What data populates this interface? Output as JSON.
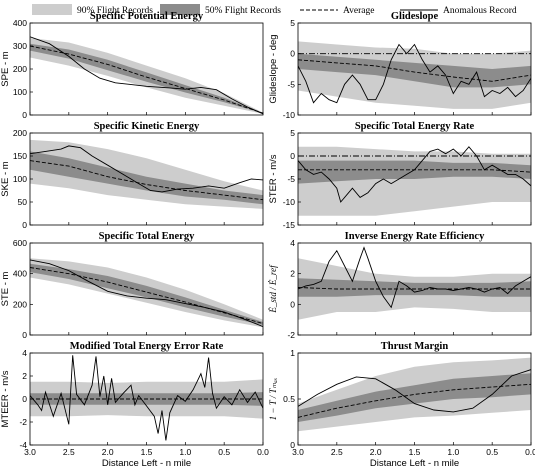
{
  "legend": [
    {
      "label": "90% Flight Records",
      "kind": "swatch",
      "color": "#cdcdcd"
    },
    {
      "label": "50% Flight Records",
      "kind": "swatch",
      "color": "#8c8c8c"
    },
    {
      "label": "Average",
      "kind": "dashed",
      "color": "#000000"
    },
    {
      "label": "Anomalous Record",
      "kind": "solid",
      "color": "#000000"
    }
  ],
  "colors": {
    "band90": "#cdcdcd",
    "band50": "#8c8c8c",
    "line": "#000000"
  },
  "chart_data": [
    {
      "type": "area",
      "title": "Specific Potential Energy",
      "ylabel": "SPE - m",
      "xlabel": "",
      "xlim": [
        3.0,
        0.0
      ],
      "ylim": [
        0,
        400
      ],
      "yticks": [
        0,
        100,
        200,
        300,
        400
      ],
      "xticks": [
        3.0,
        2.5,
        2.0,
        1.5,
        1.0,
        0.5,
        0.0
      ],
      "xticklabels": [],
      "x": [
        3.0,
        2.5,
        2.0,
        1.5,
        1.0,
        0.5,
        0.0
      ],
      "p90_lo": [
        250,
        215,
        170,
        120,
        75,
        40,
        5
      ],
      "p90_hi": [
        335,
        315,
        270,
        215,
        160,
        95,
        10
      ],
      "p50_lo": [
        280,
        245,
        195,
        145,
        98,
        55,
        8
      ],
      "p50_hi": [
        310,
        285,
        240,
        185,
        130,
        75,
        10
      ],
      "average": [
        300,
        265,
        220,
        165,
        115,
        65,
        8
      ],
      "anomalous": {
        "x": [
          3.0,
          2.75,
          2.5,
          2.3,
          2.1,
          1.9,
          1.5,
          1.2,
          1.0,
          0.8,
          0.6,
          0.4,
          0.2,
          0.0
        ],
        "y": [
          340,
          310,
          255,
          200,
          160,
          140,
          125,
          118,
          112,
          120,
          110,
          70,
          35,
          5
        ]
      },
      "zero_line": false
    },
    {
      "type": "area",
      "title": "Glideslope",
      "ylabel": "Glideslope - deg",
      "xlabel": "",
      "xlim": [
        3.0,
        0.0
      ],
      "ylim": [
        -10,
        5
      ],
      "yticks": [
        -10,
        -5,
        0,
        5
      ],
      "xticks": [
        3.0,
        2.5,
        2.0,
        1.5,
        1.0,
        0.5,
        0.0
      ],
      "xticklabels": [],
      "x": [
        3.0,
        2.5,
        2.0,
        1.5,
        1.0,
        0.5,
        0.0
      ],
      "p90_lo": [
        -6,
        -7,
        -8,
        -8.5,
        -9,
        -9,
        -8
      ],
      "p90_hi": [
        2,
        1.5,
        1,
        0.8,
        0,
        0,
        0.5
      ],
      "p50_lo": [
        -2.5,
        -3,
        -3.5,
        -4.5,
        -5.5,
        -5.5,
        -5
      ],
      "p50_hi": [
        0,
        -0.5,
        -1,
        -1.5,
        -2,
        -2.5,
        -2
      ],
      "average": [
        -1,
        -1.5,
        -2,
        -3,
        -3.8,
        -4.5,
        -3.5
      ],
      "anomalous": {
        "x": [
          3.0,
          2.9,
          2.8,
          2.7,
          2.6,
          2.5,
          2.4,
          2.3,
          2.2,
          2.1,
          2.0,
          1.9,
          1.8,
          1.7,
          1.6,
          1.5,
          1.4,
          1.3,
          1.2,
          1.1,
          1.0,
          0.9,
          0.8,
          0.7,
          0.6,
          0.5,
          0.4,
          0.3,
          0.2,
          0.1,
          0.0
        ],
        "y": [
          -2,
          -4.5,
          -8,
          -6.5,
          -7.5,
          -8,
          -5,
          -3.5,
          -5,
          -7.5,
          -7.5,
          -5,
          -1,
          1.5,
          0,
          1.5,
          -1,
          -3,
          -2,
          -3.5,
          -6.5,
          -4.5,
          -5,
          -3,
          -7,
          -6,
          -6.5,
          -5.5,
          -7,
          -6,
          -4
        ]
      },
      "zero_line": true
    },
    {
      "type": "area",
      "title": "Specific Kinetic Energy",
      "ylabel": "SKE - m",
      "xlabel": "",
      "xlim": [
        3.0,
        0.0
      ],
      "ylim": [
        0,
        200
      ],
      "yticks": [
        0,
        50,
        100,
        150,
        200
      ],
      "xticks": [
        3.0,
        2.5,
        2.0,
        1.5,
        1.0,
        0.5,
        0.0
      ],
      "xticklabels": [],
      "x": [
        3.0,
        2.5,
        2.0,
        1.5,
        1.0,
        0.5,
        0.0
      ],
      "p90_lo": [
        90,
        80,
        65,
        55,
        45,
        40,
        35
      ],
      "p90_hi": [
        185,
        180,
        165,
        145,
        120,
        95,
        75
      ],
      "p50_lo": [
        120,
        105,
        90,
        75,
        62,
        55,
        45
      ],
      "p50_hi": [
        160,
        145,
        125,
        105,
        90,
        75,
        65
      ],
      "average": [
        140,
        128,
        105,
        88,
        75,
        65,
        55
      ],
      "anomalous": {
        "x": [
          3.0,
          2.8,
          2.6,
          2.5,
          2.35,
          2.2,
          2.0,
          1.8,
          1.6,
          1.45,
          1.3,
          1.1,
          0.9,
          0.7,
          0.5,
          0.3,
          0.15,
          0.0
        ],
        "y": [
          155,
          160,
          165,
          172,
          168,
          150,
          130,
          110,
          90,
          75,
          72,
          78,
          80,
          85,
          80,
          92,
          100,
          98
        ]
      },
      "zero_line": false
    },
    {
      "type": "area",
      "title": "Specific Total Energy Rate",
      "ylabel": "STER - m/s",
      "xlabel": "",
      "xlim": [
        3.0,
        0.0
      ],
      "ylim": [
        -15,
        5
      ],
      "yticks": [
        -15,
        -10,
        -5,
        0,
        5
      ],
      "xticks": [
        3.0,
        2.5,
        2.0,
        1.5,
        1.0,
        0.5,
        0.0
      ],
      "xticklabels": [],
      "x": [
        3.0,
        2.5,
        2.0,
        1.5,
        1.0,
        0.5,
        0.0
      ],
      "p90_lo": [
        -13,
        -13,
        -13,
        -12,
        -11,
        -10,
        -10
      ],
      "p90_hi": [
        2,
        2,
        1.5,
        1,
        1,
        0.5,
        0.5
      ],
      "p50_lo": [
        -6,
        -5.5,
        -5,
        -5,
        -4.5,
        -4.5,
        -5
      ],
      "p50_hi": [
        -1,
        -1,
        -1,
        -1,
        -1.5,
        -1.5,
        -2
      ],
      "average": [
        -3,
        -3,
        -3,
        -3,
        -3,
        -3,
        -3.5
      ],
      "anomalous": {
        "x": [
          3.0,
          2.9,
          2.8,
          2.7,
          2.6,
          2.5,
          2.45,
          2.4,
          2.3,
          2.2,
          2.1,
          2.0,
          1.9,
          1.8,
          1.7,
          1.6,
          1.5,
          1.4,
          1.3,
          1.2,
          1.1,
          1.0,
          0.9,
          0.8,
          0.7,
          0.6,
          0.5,
          0.4,
          0.3,
          0.2,
          0.1,
          0.0
        ],
        "y": [
          -1,
          -3,
          -4,
          -3.5,
          -5,
          -7,
          -10,
          -9,
          -7,
          -9,
          -8,
          -6,
          -5,
          -6,
          -5,
          -4,
          -3,
          -1,
          1,
          1.5,
          0.5,
          1.5,
          0,
          2,
          0,
          -3,
          -2,
          -3,
          -4,
          -4,
          -5,
          -6.5
        ]
      },
      "zero_line": true
    },
    {
      "type": "area",
      "title": "Specific Total Energy",
      "ylabel": "STE - m",
      "xlabel": "",
      "xlim": [
        3.0,
        0.0
      ],
      "ylim": [
        0,
        600
      ],
      "yticks": [
        0,
        200,
        400,
        600
      ],
      "xticks": [
        3.0,
        2.5,
        2.0,
        1.5,
        1.0,
        0.5,
        0.0
      ],
      "xticklabels": [],
      "x": [
        3.0,
        2.5,
        2.0,
        1.5,
        1.0,
        0.5,
        0.0
      ],
      "p90_lo": [
        375,
        330,
        270,
        210,
        150,
        95,
        50
      ],
      "p90_hi": [
        500,
        480,
        440,
        375,
        295,
        200,
        100
      ],
      "p50_lo": [
        410,
        365,
        305,
        245,
        180,
        120,
        65
      ],
      "p50_hi": [
        465,
        430,
        385,
        320,
        245,
        165,
        85
      ],
      "average": [
        440,
        400,
        345,
        280,
        215,
        145,
        75
      ],
      "anomalous": {
        "x": [
          3.0,
          2.75,
          2.5,
          2.25,
          2.0,
          1.75,
          1.5,
          1.25,
          1.0,
          0.75,
          0.5,
          0.25,
          0.0
        ],
        "y": [
          490,
          465,
          420,
          350,
          285,
          255,
          240,
          230,
          205,
          180,
          150,
          105,
          55
        ]
      },
      "zero_line": false
    },
    {
      "type": "area",
      "title": "Inverse Energy Rate Efficiency",
      "ylabel": "Ė_std / Ė_ref",
      "ylabel_display": "Ė_std / Ė_ref",
      "xlabel": "",
      "xlim": [
        3.0,
        0.0
      ],
      "ylim": [
        -2,
        4
      ],
      "yticks": [
        -2,
        0,
        2,
        4
      ],
      "xticks": [
        3.0,
        2.5,
        2.0,
        1.5,
        1.0,
        0.5,
        0.0
      ],
      "xticklabels": [],
      "x": [
        3.0,
        2.5,
        2.0,
        1.5,
        1.0,
        0.5,
        0.0
      ],
      "p90_lo": [
        -1,
        -0.5,
        -0.5,
        -0.2,
        -0.3,
        -0.5,
        -0.5
      ],
      "p90_hi": [
        3,
        2.5,
        2,
        1.8,
        1.8,
        2,
        2
      ],
      "p50_lo": [
        0.5,
        0.5,
        0.6,
        0.6,
        0.6,
        0.5,
        0.5
      ],
      "p50_hi": [
        1.7,
        1.6,
        1.5,
        1.4,
        1.4,
        1.4,
        1.5
      ],
      "average": [
        1.1,
        1.0,
        1.0,
        1.0,
        1.0,
        1.0,
        1.0
      ],
      "anomalous": {
        "x": [
          3.0,
          2.9,
          2.8,
          2.7,
          2.6,
          2.5,
          2.4,
          2.3,
          2.2,
          2.15,
          2.1,
          2.0,
          1.9,
          1.8,
          1.7,
          1.6,
          1.5,
          1.4,
          1.3,
          1.2,
          1.1,
          1.0,
          0.9,
          0.8,
          0.7,
          0.6,
          0.5,
          0.4,
          0.3,
          0.2,
          0.1,
          0.0
        ],
        "y": [
          1.0,
          1.2,
          1.3,
          1.5,
          2.8,
          3.5,
          2.5,
          1.5,
          3.0,
          3.7,
          3.0,
          1.5,
          0.5,
          -0.2,
          1.5,
          1.2,
          0.8,
          0.9,
          1.1,
          1.0,
          1.0,
          0.9,
          1.0,
          1.1,
          1.0,
          0.8,
          1.0,
          1.1,
          0.7,
          1.2,
          1.5,
          1.8
        ]
      },
      "zero_line": false
    },
    {
      "type": "area",
      "title": "Modified Total Energy Error Rate",
      "ylabel": "MTEER - m/s",
      "xlabel": "Distance Left - n mile",
      "xlim": [
        3.0,
        0.0
      ],
      "ylim": [
        -4,
        4
      ],
      "yticks": [
        -4,
        -2,
        0,
        2,
        4
      ],
      "xticks": [
        3.0,
        2.5,
        2.0,
        1.5,
        1.0,
        0.5,
        0.0
      ],
      "xticklabels": [
        "3.0",
        "2.5",
        "2.0",
        "1.5",
        "1.0",
        "0.5",
        "0.0"
      ],
      "x": [
        3.0,
        2.5,
        2.0,
        1.5,
        1.0,
        0.5,
        0.0
      ],
      "p90_lo": [
        -1.5,
        -1.5,
        -1.4,
        -1.5,
        -1.5,
        -1.5,
        -1.7
      ],
      "p90_hi": [
        1.5,
        1.5,
        1.4,
        1.5,
        1.5,
        1.5,
        1.7
      ],
      "p50_lo": [
        -0.5,
        -0.5,
        -0.5,
        -0.5,
        -0.5,
        -0.5,
        -0.6
      ],
      "p50_hi": [
        0.5,
        0.5,
        0.5,
        0.5,
        0.5,
        0.5,
        0.6
      ],
      "average": [
        0.0,
        0.0,
        0.0,
        0.0,
        0.0,
        0.0,
        0.0
      ],
      "anomalous": {
        "x": [
          3.0,
          2.9,
          2.85,
          2.8,
          2.7,
          2.6,
          2.5,
          2.45,
          2.4,
          2.3,
          2.2,
          2.15,
          2.1,
          2.05,
          2.0,
          1.95,
          1.9,
          1.8,
          1.7,
          1.65,
          1.6,
          1.5,
          1.4,
          1.35,
          1.3,
          1.25,
          1.2,
          1.1,
          1.0,
          0.9,
          0.85,
          0.8,
          0.75,
          0.7,
          0.65,
          0.6,
          0.5,
          0.4,
          0.3,
          0.2,
          0.1,
          0.0
        ],
        "y": [
          0.3,
          -0.5,
          -1.0,
          0.6,
          -1.5,
          0.5,
          -2.2,
          3.8,
          0.4,
          -0.5,
          1.2,
          3.7,
          0.2,
          2.0,
          -0.5,
          1.8,
          -0.3,
          0.5,
          1.2,
          -0.5,
          0.3,
          -0.6,
          -1.5,
          -3.0,
          -1.0,
          -3.6,
          -1.2,
          0.3,
          -0.2,
          0.8,
          1.5,
          2.2,
          1.0,
          3.6,
          0.5,
          -0.8,
          0.2,
          -0.5,
          0.8,
          -0.3,
          0.6,
          -0.8
        ]
      },
      "zero_line": false
    },
    {
      "type": "area",
      "title": "Thrust  Margin",
      "ylabel": "1 − T / T_max",
      "ylabel_display": "1 − T / Tₘₐₓ",
      "xlabel": "Distance Left - n mile",
      "xlim": [
        3.0,
        0.0
      ],
      "ylim": [
        0,
        1
      ],
      "yticks": [
        0.0,
        0.5,
        1.0
      ],
      "xticks": [
        3.0,
        2.5,
        2.0,
        1.5,
        1.0,
        0.5,
        0.0
      ],
      "xticklabels": [
        "3.0",
        "2.5",
        "2.0",
        "1.5",
        "1.0",
        "0.5",
        "0.0"
      ],
      "x": [
        3.0,
        2.5,
        2.0,
        1.5,
        1.0,
        0.5,
        0.0
      ],
      "p90_lo": [
        0.15,
        0.2,
        0.25,
        0.3,
        0.32,
        0.35,
        0.38
      ],
      "p90_hi": [
        0.45,
        0.6,
        0.75,
        0.85,
        0.9,
        0.92,
        0.95
      ],
      "p50_lo": [
        0.25,
        0.32,
        0.4,
        0.45,
        0.5,
        0.52,
        0.55
      ],
      "p50_hi": [
        0.38,
        0.48,
        0.58,
        0.65,
        0.72,
        0.75,
        0.78
      ],
      "average": [
        0.3,
        0.4,
        0.48,
        0.55,
        0.6,
        0.63,
        0.66
      ],
      "anomalous": {
        "x": [
          3.0,
          2.75,
          2.5,
          2.25,
          2.0,
          1.75,
          1.5,
          1.25,
          1.0,
          0.75,
          0.5,
          0.25,
          0.0
        ],
        "y": [
          0.42,
          0.55,
          0.66,
          0.74,
          0.72,
          0.6,
          0.45,
          0.38,
          0.36,
          0.4,
          0.55,
          0.75,
          0.82
        ]
      },
      "zero_line": false
    }
  ]
}
